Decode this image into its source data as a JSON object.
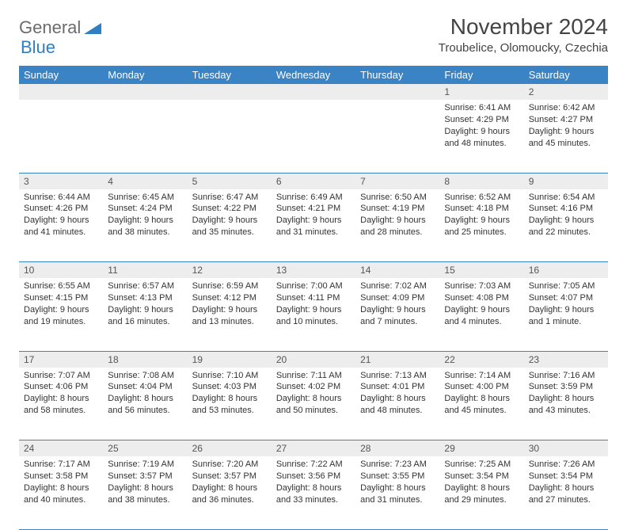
{
  "logo": {
    "text1": "General",
    "text2": "Blue"
  },
  "title": "November 2024",
  "location": "Troubelice, Olomoucky, Czechia",
  "colors": {
    "header_bg": "#3a83c4",
    "header_text": "#ffffff",
    "daynum_bg": "#ededed",
    "border": "#3a83c4",
    "logo_gray": "#6b6b6b",
    "logo_blue": "#2f7fc1"
  },
  "weekdays": [
    "Sunday",
    "Monday",
    "Tuesday",
    "Wednesday",
    "Thursday",
    "Friday",
    "Saturday"
  ],
  "weeks": [
    [
      null,
      null,
      null,
      null,
      null,
      {
        "n": "1",
        "sr": "6:41 AM",
        "ss": "4:29 PM",
        "dl": "9 hours and 48 minutes."
      },
      {
        "n": "2",
        "sr": "6:42 AM",
        "ss": "4:27 PM",
        "dl": "9 hours and 45 minutes."
      }
    ],
    [
      {
        "n": "3",
        "sr": "6:44 AM",
        "ss": "4:26 PM",
        "dl": "9 hours and 41 minutes."
      },
      {
        "n": "4",
        "sr": "6:45 AM",
        "ss": "4:24 PM",
        "dl": "9 hours and 38 minutes."
      },
      {
        "n": "5",
        "sr": "6:47 AM",
        "ss": "4:22 PM",
        "dl": "9 hours and 35 minutes."
      },
      {
        "n": "6",
        "sr": "6:49 AM",
        "ss": "4:21 PM",
        "dl": "9 hours and 31 minutes."
      },
      {
        "n": "7",
        "sr": "6:50 AM",
        "ss": "4:19 PM",
        "dl": "9 hours and 28 minutes."
      },
      {
        "n": "8",
        "sr": "6:52 AM",
        "ss": "4:18 PM",
        "dl": "9 hours and 25 minutes."
      },
      {
        "n": "9",
        "sr": "6:54 AM",
        "ss": "4:16 PM",
        "dl": "9 hours and 22 minutes."
      }
    ],
    [
      {
        "n": "10",
        "sr": "6:55 AM",
        "ss": "4:15 PM",
        "dl": "9 hours and 19 minutes."
      },
      {
        "n": "11",
        "sr": "6:57 AM",
        "ss": "4:13 PM",
        "dl": "9 hours and 16 minutes."
      },
      {
        "n": "12",
        "sr": "6:59 AM",
        "ss": "4:12 PM",
        "dl": "9 hours and 13 minutes."
      },
      {
        "n": "13",
        "sr": "7:00 AM",
        "ss": "4:11 PM",
        "dl": "9 hours and 10 minutes."
      },
      {
        "n": "14",
        "sr": "7:02 AM",
        "ss": "4:09 PM",
        "dl": "9 hours and 7 minutes."
      },
      {
        "n": "15",
        "sr": "7:03 AM",
        "ss": "4:08 PM",
        "dl": "9 hours and 4 minutes."
      },
      {
        "n": "16",
        "sr": "7:05 AM",
        "ss": "4:07 PM",
        "dl": "9 hours and 1 minute."
      }
    ],
    [
      {
        "n": "17",
        "sr": "7:07 AM",
        "ss": "4:06 PM",
        "dl": "8 hours and 58 minutes."
      },
      {
        "n": "18",
        "sr": "7:08 AM",
        "ss": "4:04 PM",
        "dl": "8 hours and 56 minutes."
      },
      {
        "n": "19",
        "sr": "7:10 AM",
        "ss": "4:03 PM",
        "dl": "8 hours and 53 minutes."
      },
      {
        "n": "20",
        "sr": "7:11 AM",
        "ss": "4:02 PM",
        "dl": "8 hours and 50 minutes."
      },
      {
        "n": "21",
        "sr": "7:13 AM",
        "ss": "4:01 PM",
        "dl": "8 hours and 48 minutes."
      },
      {
        "n": "22",
        "sr": "7:14 AM",
        "ss": "4:00 PM",
        "dl": "8 hours and 45 minutes."
      },
      {
        "n": "23",
        "sr": "7:16 AM",
        "ss": "3:59 PM",
        "dl": "8 hours and 43 minutes."
      }
    ],
    [
      {
        "n": "24",
        "sr": "7:17 AM",
        "ss": "3:58 PM",
        "dl": "8 hours and 40 minutes."
      },
      {
        "n": "25",
        "sr": "7:19 AM",
        "ss": "3:57 PM",
        "dl": "8 hours and 38 minutes."
      },
      {
        "n": "26",
        "sr": "7:20 AM",
        "ss": "3:57 PM",
        "dl": "8 hours and 36 minutes."
      },
      {
        "n": "27",
        "sr": "7:22 AM",
        "ss": "3:56 PM",
        "dl": "8 hours and 33 minutes."
      },
      {
        "n": "28",
        "sr": "7:23 AM",
        "ss": "3:55 PM",
        "dl": "8 hours and 31 minutes."
      },
      {
        "n": "29",
        "sr": "7:25 AM",
        "ss": "3:54 PM",
        "dl": "8 hours and 29 minutes."
      },
      {
        "n": "30",
        "sr": "7:26 AM",
        "ss": "3:54 PM",
        "dl": "8 hours and 27 minutes."
      }
    ]
  ],
  "labels": {
    "sunrise": "Sunrise: ",
    "sunset": "Sunset: ",
    "daylight": "Daylight: "
  }
}
